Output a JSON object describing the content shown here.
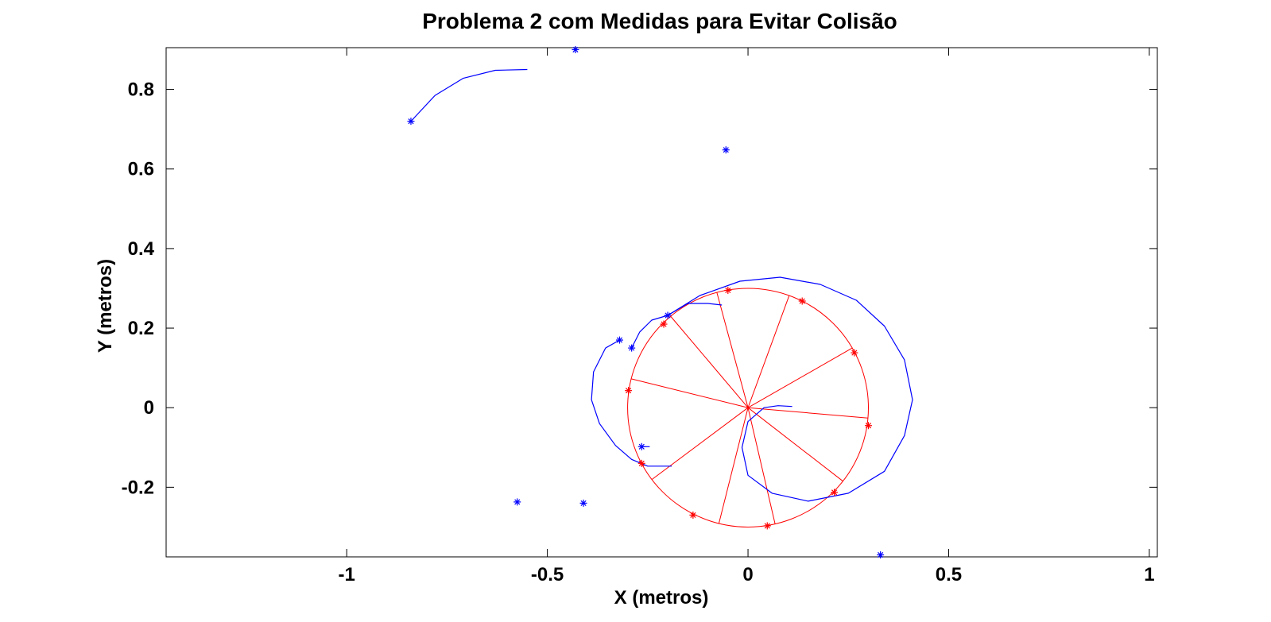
{
  "chart_data": {
    "type": "scatter",
    "title": "Problema 2 com Medidas para Evitar Colisão",
    "xlabel": "X (metros)",
    "ylabel": "Y (metros)",
    "xlim": [
      -1.45,
      1.02
    ],
    "ylim": [
      -0.375,
      0.905
    ],
    "xticks": [
      -1,
      -0.5,
      0,
      0.5,
      1
    ],
    "xtick_labels": [
      "-1",
      "-0.5",
      "0",
      "0.5",
      "1"
    ],
    "yticks": [
      -0.2,
      0,
      0.2,
      0.4,
      0.6,
      0.8
    ],
    "ytick_labels": [
      "-0.2",
      "0",
      "0.2",
      "0.4",
      "0.6",
      "0.8"
    ],
    "grid": false,
    "colors": {
      "blue": "#0000ff",
      "red": "#ff0000"
    },
    "circle": {
      "center": [
        0,
        0
      ],
      "radius": 0.3,
      "color": "#ff0000"
    },
    "spokes": {
      "color": "#ff0000",
      "center": [
        0,
        0
      ],
      "angles_deg": [
        -5,
        30,
        70,
        105,
        130,
        166,
        217,
        256,
        283,
        322
      ]
    },
    "red_points": [
      [
        -0.05,
        0.295
      ],
      [
        0.135,
        0.268
      ],
      [
        0.265,
        0.138
      ],
      [
        0.3,
        -0.045
      ],
      [
        0.215,
        -0.213
      ],
      [
        0.048,
        -0.297
      ],
      [
        -0.137,
        -0.27
      ],
      [
        -0.265,
        -0.14
      ],
      [
        -0.298,
        0.043
      ],
      [
        -0.21,
        0.21
      ]
    ],
    "blue_points": [
      [
        -0.84,
        0.72
      ],
      [
        -0.43,
        0.9
      ],
      [
        -0.055,
        0.648
      ],
      [
        -0.32,
        0.17
      ],
      [
        -0.29,
        0.15
      ],
      [
        -0.2,
        0.232
      ],
      [
        -0.265,
        -0.098
      ],
      [
        -0.575,
        -0.237
      ],
      [
        -0.41,
        -0.24
      ],
      [
        0.33,
        -0.37
      ]
    ],
    "blue_paths": [
      [
        [
          -0.84,
          0.72
        ],
        [
          -0.78,
          0.785
        ],
        [
          -0.71,
          0.828
        ],
        [
          -0.63,
          0.848
        ],
        [
          -0.55,
          0.85
        ]
      ],
      [
        [
          -0.2,
          0.232
        ],
        [
          -0.15,
          0.262
        ],
        [
          -0.1,
          0.262
        ],
        [
          -0.065,
          0.258
        ]
      ],
      [
        [
          -0.2,
          0.232
        ],
        [
          -0.12,
          0.282
        ],
        [
          -0.02,
          0.318
        ],
        [
          0.08,
          0.328
        ],
        [
          0.18,
          0.31
        ],
        [
          0.27,
          0.27
        ],
        [
          0.34,
          0.205
        ],
        [
          0.39,
          0.12
        ],
        [
          0.41,
          0.02
        ],
        [
          0.39,
          -0.07
        ],
        [
          0.34,
          -0.16
        ],
        [
          0.25,
          -0.215
        ],
        [
          0.15,
          -0.235
        ],
        [
          0.06,
          -0.215
        ],
        [
          0.0,
          -0.17
        ],
        [
          -0.015,
          -0.1
        ],
        [
          0.0,
          -0.035
        ],
        [
          0.04,
          0.0
        ],
        [
          0.075,
          0.005
        ],
        [
          0.11,
          0.003
        ]
      ],
      [
        [
          -0.32,
          0.17
        ],
        [
          -0.355,
          0.15
        ],
        [
          -0.385,
          0.09
        ],
        [
          -0.39,
          0.02
        ],
        [
          -0.37,
          -0.04
        ],
        [
          -0.33,
          -0.095
        ],
        [
          -0.29,
          -0.13
        ],
        [
          -0.25,
          -0.147
        ],
        [
          -0.19,
          -0.147
        ]
      ],
      [
        [
          -0.29,
          0.15
        ],
        [
          -0.27,
          0.19
        ],
        [
          -0.24,
          0.22
        ],
        [
          -0.2,
          0.232
        ]
      ],
      [
        [
          -0.265,
          -0.098
        ],
        [
          -0.245,
          -0.098
        ]
      ]
    ]
  }
}
